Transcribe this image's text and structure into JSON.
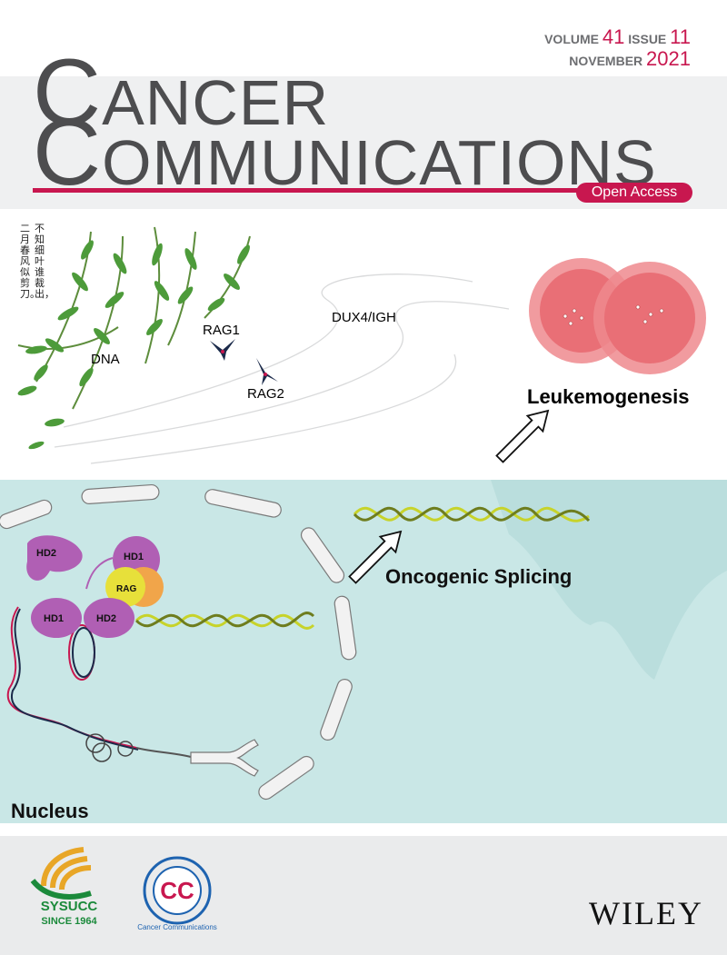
{
  "masthead": {
    "volume_label": "VOLUME",
    "volume_number": "41",
    "issue_label": "ISSUE",
    "issue_number": "11",
    "month": "NOVEMBER",
    "year": "2021",
    "title_word1_initial": "C",
    "title_word1_rest": "ANCER",
    "title_word2_initial": "C",
    "title_word2_rest": "OMMUNICATIONS",
    "open_access": "Open Access"
  },
  "poem": {
    "col1": "不知细叶谁裁出，",
    "col2": "二月春风似剪刀。"
  },
  "illustration": {
    "dna": "DNA",
    "rag1": "RAG1",
    "rag2": "RAG2",
    "dux4_igh": "DUX4/IGH",
    "leukemogenesis": "Leukemogenesis",
    "oncogenic_splicing": "Oncogenic Splicing",
    "nucleus": "Nucleus",
    "hd2_top": "HD2",
    "hd1_top": "HD1",
    "rag": "RAG",
    "hd1_bottom": "HD1",
    "hd2_bottom": "HD2"
  },
  "footer": {
    "sysucc": "SYSUCC",
    "since": "SINCE 1964",
    "cc_ring_text": "Cancer Communications",
    "cc_initials": "CC",
    "publisher": "WILEY"
  },
  "colors": {
    "accent": "#c8174f",
    "title_gray": "#4d4d4f",
    "lower_bg": "#c9e7e6",
    "leaf_green": "#4d9b3a",
    "hd_purple": "#b05fb4"
  }
}
